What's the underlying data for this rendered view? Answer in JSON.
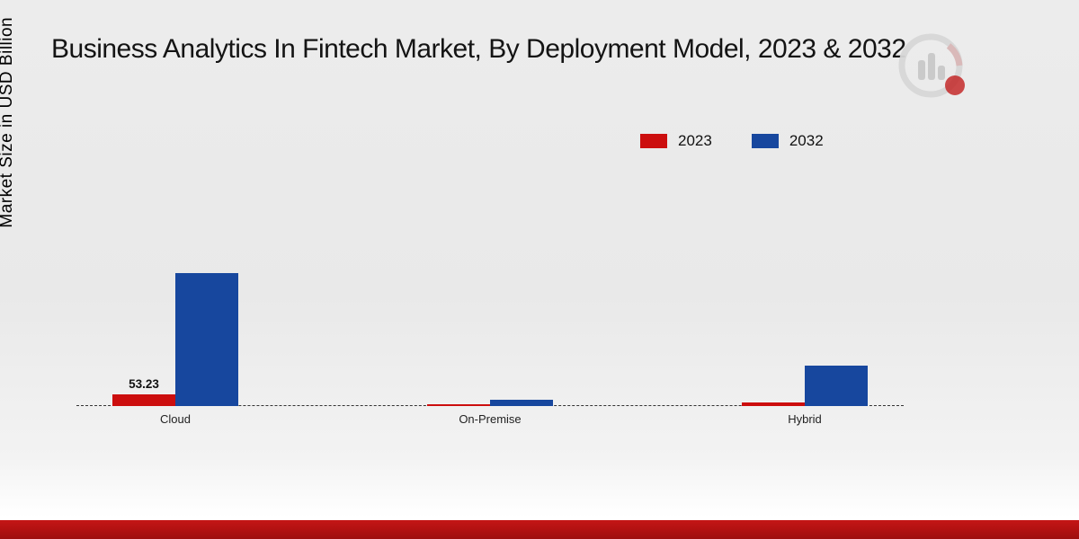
{
  "title": "Business Analytics In Fintech Market, By Deployment Model, 2023 & 2032",
  "y_axis_label": "Market Size in USD Billion",
  "legend": [
    {
      "label": "2023",
      "color": "#cc0e0e"
    },
    {
      "label": "2032",
      "color": "#17479e"
    }
  ],
  "colors": {
    "series_2023": "#cc0e0e",
    "series_2032": "#17479e",
    "bottom_strip": "#b01111",
    "baseline": "#333333"
  },
  "chart_data": {
    "type": "bar",
    "title": "Business Analytics In Fintech Market, By Deployment Model, 2023 & 2032",
    "xlabel": "",
    "ylabel": "Market Size in USD Billion",
    "categories": [
      "Cloud",
      "On-Premise",
      "Hybrid"
    ],
    "series": [
      {
        "name": "2023",
        "color": "#cc0e0e",
        "values": [
          53.23,
          9,
          15
        ]
      },
      {
        "name": "2032",
        "color": "#17479e",
        "values": [
          605,
          30,
          185
        ]
      }
    ],
    "ylim": [
      0,
      650
    ],
    "grid": false,
    "legend_position": "top-right",
    "baseline_style": "dashed",
    "annotations": [
      {
        "category": "Cloud",
        "series": "2023",
        "text": "53.23"
      }
    ]
  },
  "logo": {
    "name": "market-research-future-logo"
  }
}
